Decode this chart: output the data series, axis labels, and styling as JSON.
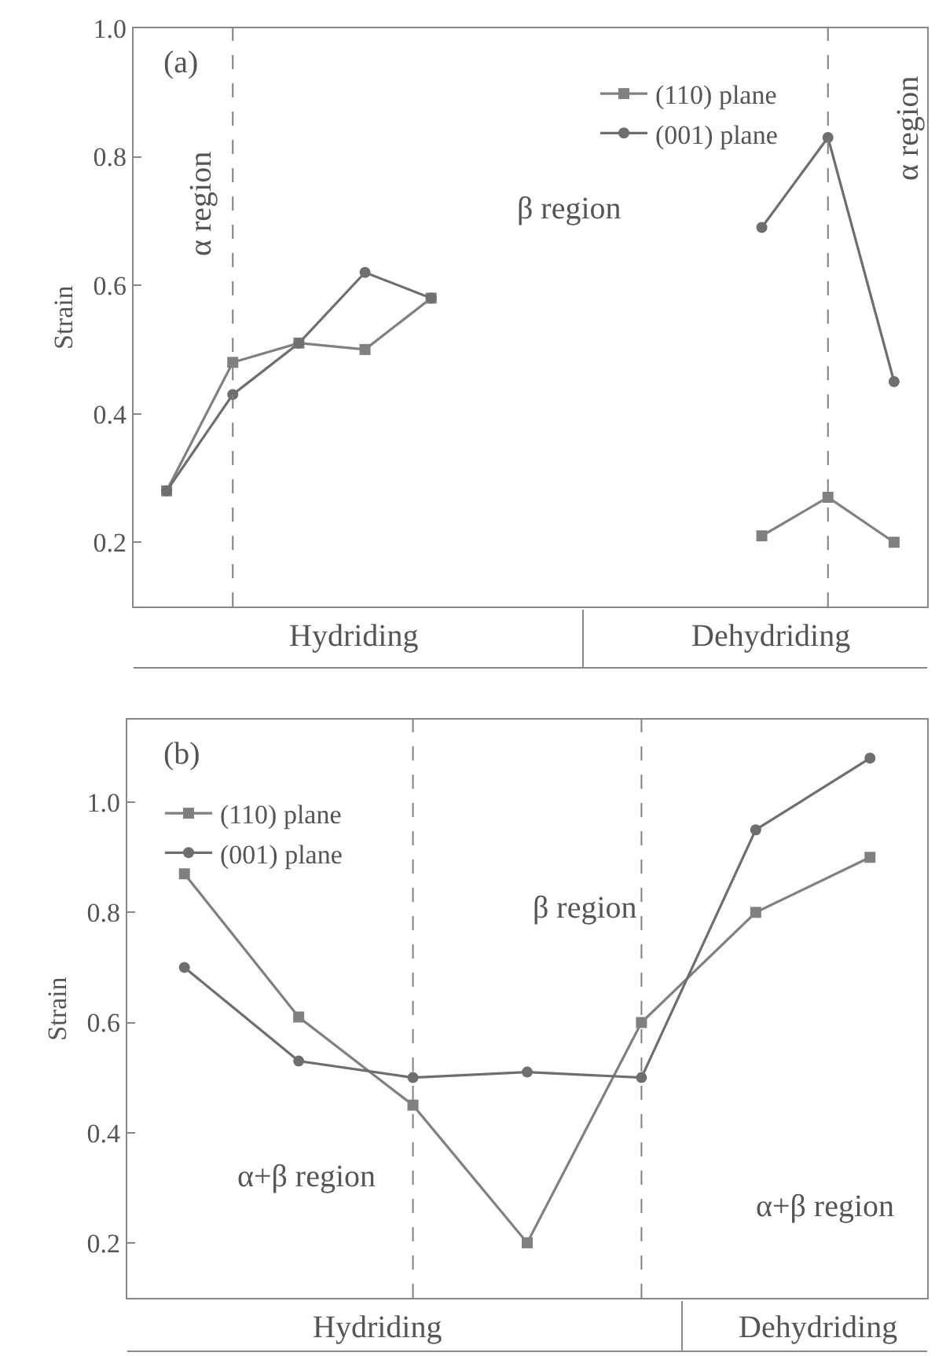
{
  "chart_data": [
    {
      "type": "line",
      "ylabel": "Strain",
      "categories": [
        null,
        null,
        null,
        null,
        null,
        null,
        null,
        null,
        null,
        null,
        null,
        null
      ],
      "series": [
        {
          "name": "(110) plane",
          "color": "#808080",
          "marker": "square",
          "values": [
            0.28,
            0.48,
            0.51,
            0.5,
            0.58,
            null,
            null,
            null,
            null,
            0.21,
            0.27,
            0.2
          ]
        },
        {
          "name": "(001) plane",
          "color": "#6e6e6e",
          "marker": "circle",
          "values": [
            0.28,
            0.43,
            0.51,
            0.62,
            0.58,
            null,
            null,
            null,
            null,
            0.69,
            0.83,
            0.45
          ]
        }
      ],
      "ylim": [
        0.1,
        1.0
      ],
      "yticks": [
        0.2,
        0.4,
        0.6,
        0.8,
        {
          "value": 1.0,
          "label": "1.0"
        }
      ],
      "annotations": [
        "(a)",
        "α region",
        "β region",
        "α region",
        "Hydriding",
        "Dehydriding"
      ],
      "legend": "top right",
      "tick_labels": "y",
      "line_style": "solid"
    },
    {
      "type": "line",
      "ylabel": "Strain",
      "categories": [
        null,
        null,
        null,
        null,
        null,
        null,
        null
      ],
      "series": [
        {
          "name": "(110) plane",
          "color": "#808080",
          "marker": "square",
          "values": [
            0.87,
            0.61,
            0.45,
            0.2,
            0.6,
            0.8,
            0.9
          ]
        },
        {
          "name": "(001) plane",
          "color": "#6e6e6e",
          "marker": "circle",
          "values": [
            0.7,
            0.53,
            0.5,
            0.51,
            0.5,
            0.95,
            1.08
          ]
        }
      ],
      "ylim": [
        0.1,
        1.15
      ],
      "yticks": [
        0.2,
        0.4,
        0.6,
        0.8,
        {
          "value": 1.0,
          "label": "1.0"
        }
      ],
      "annotations": [
        "(b)",
        "β region",
        "α+β region",
        "α+β region",
        "Hydriding",
        "Dehydriding"
      ],
      "legend": "top left",
      "tick_labels": "y",
      "line_style": "solid"
    }
  ]
}
